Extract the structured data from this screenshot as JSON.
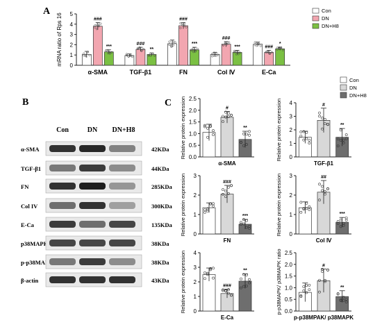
{
  "figure": {
    "panel_labels": [
      "A",
      "B",
      "C"
    ]
  },
  "colors": {
    "con": "#ffffff",
    "dn_rna": "#f2a6b0",
    "dnh8_rna": "#7bc043",
    "dn_protein": "#d8d8d8",
    "dnh8_protein": "#6e6e6e",
    "axis": "#222222"
  },
  "chart_data": [
    {
      "panel": "A",
      "type": "bar",
      "ylabel": "mRNA ratio of Rps 16",
      "ylim": [
        0,
        5
      ],
      "yticks": [
        "0",
        "1",
        "2",
        "3",
        "4",
        "5"
      ],
      "categories": [
        "α-SMA",
        "TGF-β1",
        "FN",
        "Col Ⅳ",
        "E-Ca"
      ],
      "legend": [
        "Con",
        "DN",
        "DN+H8"
      ],
      "series": [
        {
          "name": "Con",
          "values": [
            1.05,
            0.95,
            2.1,
            1.05,
            2.05
          ],
          "errors": [
            0.3,
            0.15,
            0.35,
            0.2,
            0.2
          ]
        },
        {
          "name": "DN",
          "values": [
            3.8,
            1.55,
            3.85,
            2.05,
            1.25
          ],
          "errors": [
            0.35,
            0.2,
            0.3,
            0.25,
            0.2
          ]
        },
        {
          "name": "DN+H8",
          "values": [
            1.3,
            1.05,
            1.5,
            1.25,
            1.6
          ],
          "errors": [
            0.2,
            0.15,
            0.25,
            0.2,
            0.15
          ]
        }
      ],
      "annotations": [
        [
          "",
          "###",
          "***"
        ],
        [
          "",
          "###",
          "**"
        ],
        [
          "",
          "###",
          "***"
        ],
        [
          "",
          "###",
          "***"
        ],
        [
          "",
          "###",
          "*"
        ]
      ]
    },
    {
      "panel": "C1",
      "type": "bar",
      "ylabel": "Relative protein expression",
      "xlabel": "α-SMA",
      "ylim": [
        0,
        2.5
      ],
      "yticks": [
        "0.0",
        "0.5",
        "1.0",
        "1.5",
        "2.0",
        "2.5"
      ],
      "values": [
        1.05,
        1.7,
        0.75
      ],
      "errors": [
        0.35,
        0.25,
        0.35
      ],
      "annotations": [
        "",
        "#",
        "**"
      ]
    },
    {
      "panel": "C2",
      "type": "bar",
      "ylabel": "Relative protein expression",
      "xlabel": "TGF-β1",
      "ylim": [
        0,
        4
      ],
      "yticks": [
        "0",
        "1",
        "2",
        "3",
        "4"
      ],
      "values": [
        1.45,
        2.7,
        1.45
      ],
      "errors": [
        0.45,
        0.9,
        0.65
      ],
      "annotations": [
        "",
        "#",
        "**"
      ]
    },
    {
      "panel": "C3",
      "type": "bar",
      "ylabel": "Relative protein expression",
      "xlabel": "FN",
      "ylim": [
        0,
        3
      ],
      "yticks": [
        "0",
        "1",
        "2",
        "3"
      ],
      "values": [
        1.35,
        2.05,
        0.5
      ],
      "errors": [
        0.25,
        0.45,
        0.25
      ],
      "annotations": [
        "",
        "###",
        "***"
      ]
    },
    {
      "panel": "C4",
      "type": "bar",
      "ylabel": "Relative protein expression",
      "xlabel": "Col Ⅳ",
      "ylim": [
        0,
        3
      ],
      "yticks": [
        "0",
        "1",
        "2",
        "3"
      ],
      "values": [
        1.35,
        2.15,
        0.6
      ],
      "errors": [
        0.3,
        0.6,
        0.25
      ],
      "annotations": [
        "",
        "##",
        "***"
      ]
    },
    {
      "panel": "C5",
      "type": "bar",
      "ylabel": "Relative protein expression",
      "xlabel": "E-Ca",
      "ylim": [
        0,
        4
      ],
      "yticks": [
        "0",
        "1",
        "2",
        "3",
        "4"
      ],
      "values": [
        2.5,
        1.2,
        2.05
      ],
      "errors": [
        0.45,
        0.3,
        0.5
      ],
      "annotations": [
        "",
        "###",
        "**"
      ]
    },
    {
      "panel": "C6",
      "type": "bar",
      "ylabel": "p-p38MAPK/ p38MAPK ratio",
      "xlabel": "p-p38MPAK/ p38MAPK",
      "ylim": [
        0,
        2.5
      ],
      "yticks": [
        "0.0",
        "0.5",
        "1.0",
        "1.5",
        "2.0",
        "2.5"
      ],
      "values": [
        0.8,
        1.3,
        0.62
      ],
      "errors": [
        0.4,
        0.5,
        0.25
      ],
      "annotations": [
        "",
        "#",
        "**"
      ]
    }
  ],
  "panelC_legend": [
    "Con",
    "DN",
    "DN+H8"
  ],
  "blot": {
    "lanes": [
      "Con",
      "DN",
      "DN+H8"
    ],
    "rows": [
      {
        "label": "α-SMA",
        "kda": "42KDa",
        "bands": [
          0.9,
          0.95,
          0.5
        ]
      },
      {
        "label": "TGF-β1",
        "kda": "44KDa",
        "bands": [
          0.55,
          0.85,
          0.45
        ]
      },
      {
        "label": "FN",
        "kda": "285KDa",
        "bands": [
          0.9,
          1.0,
          0.4
        ]
      },
      {
        "label": "Col IV",
        "kda": "300KDa",
        "bands": [
          0.6,
          0.9,
          0.35
        ]
      },
      {
        "label": "E-Ca",
        "kda": "135KDa",
        "bands": [
          0.85,
          0.6,
          0.8
        ]
      },
      {
        "label": "p38MAPK",
        "kda": "38KDa",
        "bands": [
          0.8,
          0.8,
          0.8
        ]
      },
      {
        "label": "p-p38MAPK",
        "kda": "38KDa",
        "bands": [
          0.55,
          0.85,
          0.45
        ]
      },
      {
        "label": "β-actin",
        "kda": "43KDa",
        "bands": [
          0.9,
          0.9,
          0.9
        ]
      }
    ]
  }
}
